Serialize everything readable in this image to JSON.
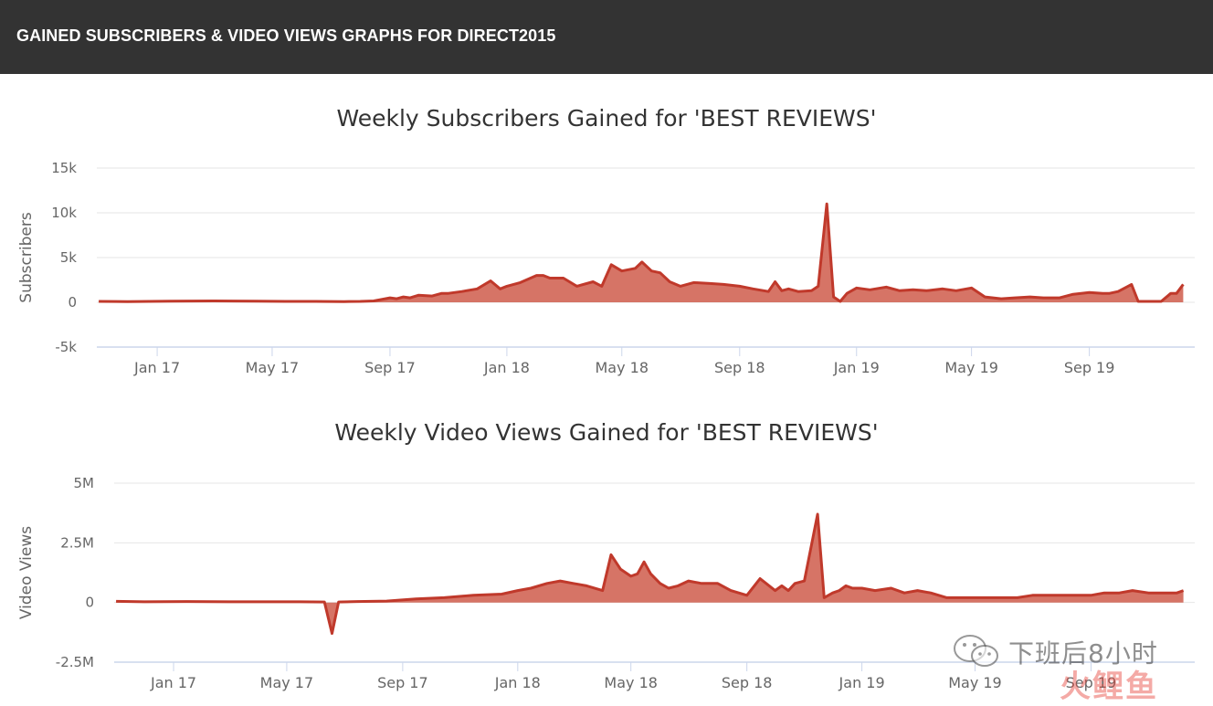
{
  "header": {
    "title": "GAINED SUBSCRIBERS & VIDEO VIEWS GRAPHS FOR DIRECT2015"
  },
  "colors": {
    "header_bg": "#333333",
    "series_line": "#c0392b",
    "series_fill": "#d26555",
    "grid": "#e6e6e6",
    "axis_line": "#ccd6eb"
  },
  "watermark": {
    "text": "下班后8小时",
    "brand": "火鲤鱼",
    "icon": "wechat-icon"
  },
  "chart_data": [
    {
      "type": "area",
      "title": "Weekly Subscribers Gained for 'BEST REVIEWS'",
      "ylabel": "Subscribers",
      "xlabel": "",
      "ylim": [
        -5000,
        15000
      ],
      "yticks": [
        15000,
        10000,
        5000,
        0,
        -5000
      ],
      "ytick_labels": [
        "15k",
        "10k",
        "5k",
        "0",
        "-5k"
      ],
      "xlim": [
        "2016-10-30",
        "2019-12-20"
      ],
      "xticks": [
        "2017-01-01",
        "2017-05-01",
        "2017-09-01",
        "2018-01-01",
        "2018-05-01",
        "2018-09-01",
        "2019-01-01",
        "2019-05-01",
        "2019-09-01"
      ],
      "xtick_labels": [
        "Jan 17",
        "May 17",
        "Sep 17",
        "Jan 18",
        "May 18",
        "Sep 18",
        "Jan 19",
        "May 19",
        "Sep 19"
      ],
      "grid": true,
      "legend": "none",
      "series": [
        {
          "x": [
            "2016-11-01",
            "2016-12-01",
            "2017-01-15",
            "2017-03-01",
            "2017-04-15",
            "2017-05-15",
            "2017-06-15",
            "2017-07-15",
            "2017-08-01",
            "2017-08-15",
            "2017-08-22",
            "2017-09-01",
            "2017-09-08",
            "2017-09-15",
            "2017-09-22",
            "2017-10-01",
            "2017-10-15",
            "2017-10-25",
            "2017-11-01",
            "2017-11-15",
            "2017-12-01",
            "2017-12-15",
            "2017-12-25",
            "2018-01-01",
            "2018-01-15",
            "2018-02-01",
            "2018-02-08",
            "2018-02-15",
            "2018-03-01",
            "2018-03-15",
            "2018-04-01",
            "2018-04-10",
            "2018-04-20",
            "2018-05-01",
            "2018-05-15",
            "2018-05-22",
            "2018-06-01",
            "2018-06-10",
            "2018-06-20",
            "2018-07-01",
            "2018-07-15",
            "2018-08-01",
            "2018-08-15",
            "2018-09-01",
            "2018-09-15",
            "2018-10-01",
            "2018-10-08",
            "2018-10-15",
            "2018-10-22",
            "2018-11-01",
            "2018-11-15",
            "2018-11-22",
            "2018-12-01",
            "2018-12-08",
            "2018-12-15",
            "2018-12-22",
            "2019-01-01",
            "2019-01-15",
            "2019-02-01",
            "2019-02-15",
            "2019-03-01",
            "2019-03-15",
            "2019-04-01",
            "2019-04-15",
            "2019-05-01",
            "2019-05-15",
            "2019-06-01",
            "2019-06-15",
            "2019-07-01",
            "2019-07-15",
            "2019-08-01",
            "2019-08-15",
            "2019-09-01",
            "2019-09-15",
            "2019-09-22",
            "2019-10-01",
            "2019-10-15",
            "2019-10-22",
            "2019-11-15",
            "2019-11-25",
            "2019-12-01",
            "2019-12-08"
          ],
          "values": [
            100,
            80,
            120,
            150,
            120,
            100,
            100,
            80,
            100,
            150,
            300,
            500,
            400,
            600,
            500,
            800,
            700,
            1000,
            1000,
            1200,
            1500,
            2400,
            1500,
            1800,
            2200,
            3000,
            3000,
            2700,
            2700,
            1800,
            2300,
            1800,
            4200,
            3500,
            3800,
            4500,
            3500,
            3300,
            2300,
            1800,
            2200,
            2100,
            2000,
            1800,
            1500,
            1200,
            2300,
            1300,
            1500,
            1200,
            1300,
            1800,
            11000,
            600,
            100,
            1000,
            1600,
            1400,
            1700,
            1300,
            1400,
            1300,
            1500,
            1300,
            1600,
            600,
            400,
            500,
            600,
            500,
            500,
            900,
            1100,
            1000,
            1000,
            1200,
            2000,
            100,
            100,
            1000,
            1000,
            2000
          ]
        }
      ]
    },
    {
      "type": "area",
      "title": "Weekly Video Views Gained for 'BEST REVIEWS'",
      "ylabel": "Video Views",
      "xlabel": "",
      "ylim": [
        -2500000,
        5000000
      ],
      "yticks": [
        5000000,
        2500000,
        0,
        -2500000
      ],
      "ytick_labels": [
        "5M",
        "2.5M",
        "0",
        "-2.5M"
      ],
      "xlim": [
        "2016-10-30",
        "2019-12-20"
      ],
      "xticks": [
        "2017-01-01",
        "2017-05-01",
        "2017-09-01",
        "2018-01-01",
        "2018-05-01",
        "2018-09-01",
        "2019-01-01",
        "2019-05-01",
        "2019-09-01"
      ],
      "xtick_labels": [
        "Jan 17",
        "May 17",
        "Sep 17",
        "Jan 18",
        "May 18",
        "Sep 18",
        "Jan 19",
        "May 19",
        "Sep 19"
      ],
      "grid": true,
      "legend": "none",
      "series": [
        {
          "x": [
            "2016-11-01",
            "2016-12-01",
            "2017-01-15",
            "2017-03-01",
            "2017-04-15",
            "2017-05-15",
            "2017-06-10",
            "2017-06-18",
            "2017-06-25",
            "2017-07-15",
            "2017-08-15",
            "2017-09-15",
            "2017-10-15",
            "2017-11-15",
            "2017-12-15",
            "2018-01-01",
            "2018-01-15",
            "2018-02-01",
            "2018-02-15",
            "2018-03-01",
            "2018-03-15",
            "2018-04-01",
            "2018-04-10",
            "2018-04-20",
            "2018-05-01",
            "2018-05-08",
            "2018-05-15",
            "2018-05-22",
            "2018-06-01",
            "2018-06-10",
            "2018-06-20",
            "2018-07-01",
            "2018-07-15",
            "2018-08-01",
            "2018-08-15",
            "2018-09-01",
            "2018-09-15",
            "2018-10-01",
            "2018-10-08",
            "2018-10-15",
            "2018-10-22",
            "2018-11-01",
            "2018-11-15",
            "2018-11-22",
            "2018-12-01",
            "2018-12-08",
            "2018-12-15",
            "2018-12-22",
            "2019-01-01",
            "2019-01-15",
            "2019-02-01",
            "2019-02-15",
            "2019-03-01",
            "2019-03-15",
            "2019-04-01",
            "2019-04-15",
            "2019-05-01",
            "2019-05-15",
            "2019-06-01",
            "2019-06-15",
            "2019-07-01",
            "2019-07-15",
            "2019-08-01",
            "2019-08-15",
            "2019-09-01",
            "2019-09-15",
            "2019-10-01",
            "2019-10-15",
            "2019-11-01",
            "2019-11-15",
            "2019-12-01",
            "2019-12-08"
          ],
          "values": [
            50000,
            30000,
            40000,
            30000,
            30000,
            30000,
            20000,
            -1300000,
            20000,
            40000,
            60000,
            150000,
            200000,
            300000,
            350000,
            500000,
            600000,
            800000,
            900000,
            800000,
            700000,
            500000,
            2000000,
            1400000,
            1100000,
            1200000,
            1700000,
            1200000,
            800000,
            600000,
            700000,
            900000,
            800000,
            800000,
            500000,
            300000,
            1000000,
            500000,
            700000,
            500000,
            800000,
            900000,
            3700000,
            200000,
            400000,
            500000,
            700000,
            600000,
            600000,
            500000,
            600000,
            400000,
            500000,
            400000,
            200000,
            200000,
            200000,
            200000,
            200000,
            200000,
            300000,
            300000,
            300000,
            300000,
            300000,
            400000,
            400000,
            500000,
            400000,
            400000,
            400000,
            500000
          ]
        }
      ]
    }
  ]
}
